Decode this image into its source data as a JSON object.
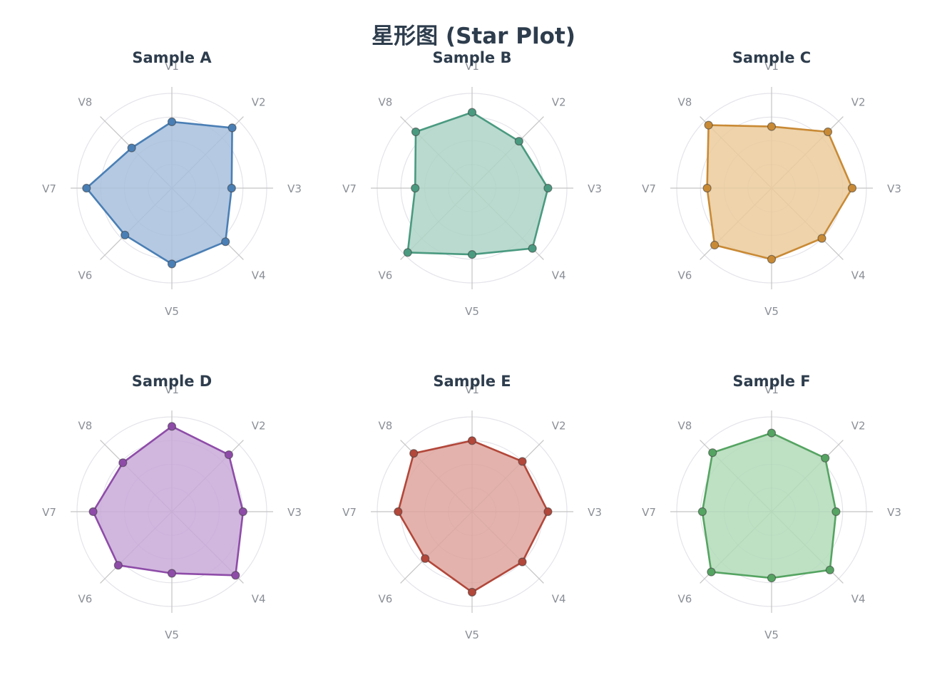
{
  "chart_data": {
    "type": "radar",
    "title": "星形图 (Star Plot)",
    "axes": [
      "V1",
      "V2",
      "V3",
      "V4",
      "V5",
      "V6",
      "V7",
      "V8"
    ],
    "rmax": 10,
    "rings": [
      2.5,
      5,
      7.5,
      10
    ],
    "grid": true,
    "legend": "none",
    "panels": [
      {
        "name": "Sample A",
        "values": [
          7.0,
          9.0,
          6.3,
          8.0,
          8.0,
          7.0,
          9.0,
          6.0
        ],
        "color": "#4a7fb5",
        "fill": "#a8c0dd"
      },
      {
        "name": "Sample B",
        "values": [
          8.0,
          7.0,
          8.0,
          9.0,
          7.0,
          9.6,
          6.0,
          8.4
        ],
        "color": "#4a9a80",
        "fill": "#aed3c7"
      },
      {
        "name": "Sample C",
        "values": [
          6.5,
          8.4,
          8.5,
          7.5,
          7.5,
          8.5,
          6.8,
          9.4
        ],
        "color": "#c98a35",
        "fill": "#ebcb9c"
      },
      {
        "name": "Sample D",
        "values": [
          9.0,
          8.5,
          7.5,
          9.5,
          6.5,
          8.0,
          8.3,
          7.3
        ],
        "color": "#8e4ca8",
        "fill": "#c9aad8"
      },
      {
        "name": "Sample E",
        "values": [
          7.5,
          7.5,
          8.0,
          7.5,
          8.5,
          7.0,
          7.8,
          8.7
        ],
        "color": "#b2473a",
        "fill": "#dea59e"
      },
      {
        "name": "Sample F",
        "values": [
          8.3,
          8.0,
          6.8,
          8.7,
          7.0,
          9.0,
          7.3,
          8.8
        ],
        "color": "#55a462",
        "fill": "#b3dbb9"
      }
    ]
  }
}
